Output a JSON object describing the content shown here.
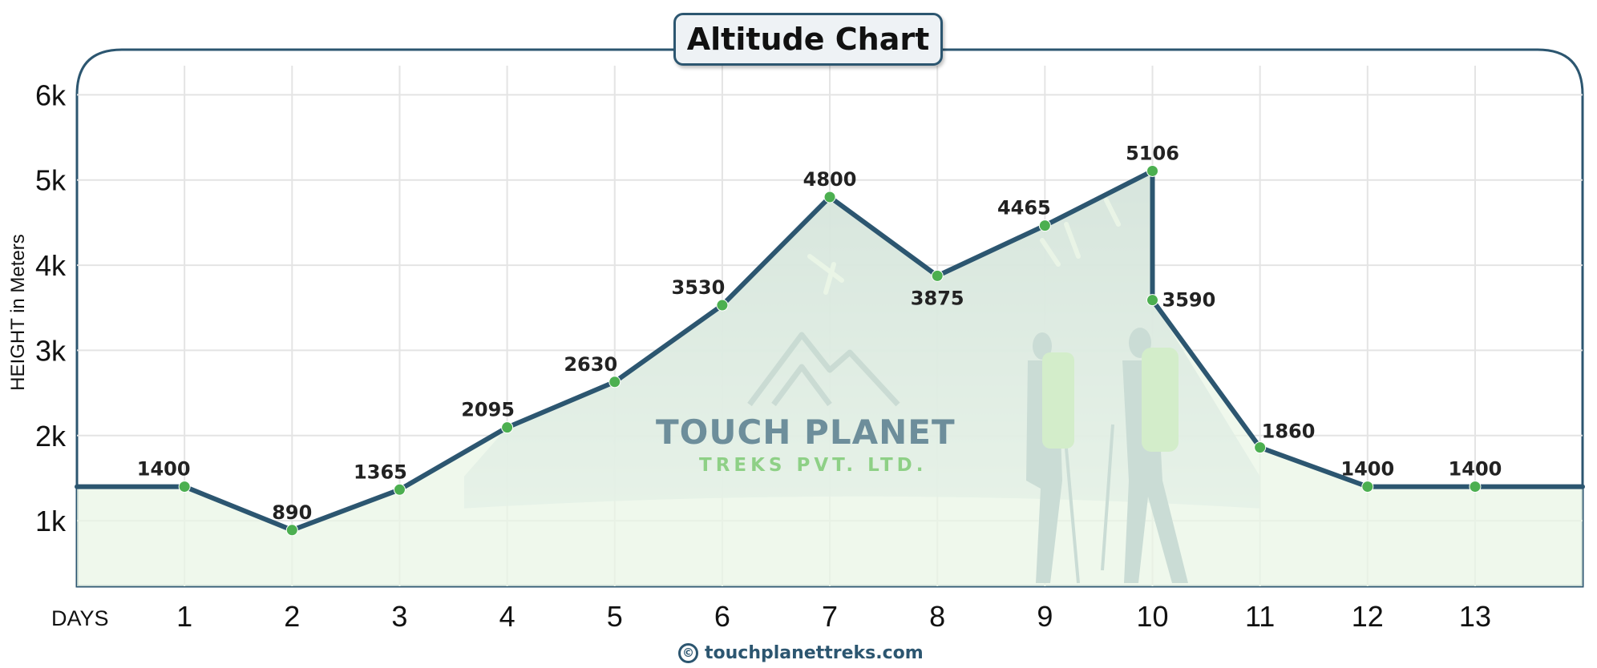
{
  "chart_data": {
    "type": "line",
    "title": "Altitude Chart",
    "xlabel": "DAYS",
    "ylabel": "HEIGHT in Meters",
    "x": [
      1,
      2,
      3,
      4,
      5,
      6,
      7,
      8,
      9,
      10,
      10,
      11,
      12,
      13
    ],
    "values": [
      1400,
      890,
      1365,
      2095,
      2630,
      3530,
      4800,
      3875,
      4465,
      5106,
      3590,
      1860,
      1400,
      1400
    ],
    "x_ticks": [
      "1",
      "2",
      "3",
      "4",
      "5",
      "6",
      "7",
      "8",
      "9",
      "10",
      "11",
      "12",
      "13"
    ],
    "y_ticks": [
      {
        "value": 1000,
        "label": "1k"
      },
      {
        "value": 2000,
        "label": "2k"
      },
      {
        "value": 3000,
        "label": "3k"
      },
      {
        "value": 4000,
        "label": "4k"
      },
      {
        "value": 5000,
        "label": "5k"
      },
      {
        "value": 6000,
        "label": "6k"
      }
    ],
    "xlim": [
      0,
      14
    ],
    "ylim": [
      230,
      6530
    ],
    "grid": true,
    "line_color": "#2c5670",
    "marker_color": "#4caf50",
    "fill_color": "#eaf6e6"
  },
  "watermark": {
    "title": "TOUCH PLANET",
    "subtitle": "TREKS PVT. LTD."
  },
  "footer": {
    "copyright_symbol": "©",
    "url": "touchplanettreks.com"
  }
}
